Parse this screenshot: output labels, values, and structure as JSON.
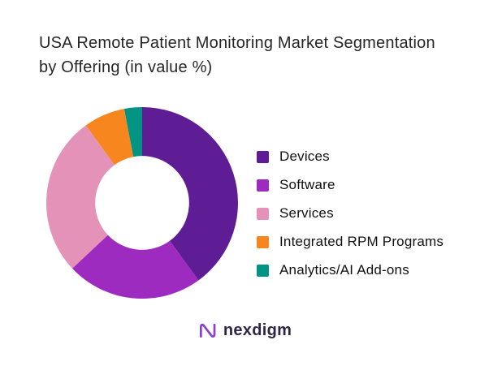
{
  "header": {
    "title_line1": "USA Remote Patient Monitoring Market Segmentation",
    "title_line2": "by Offering (in value %)"
  },
  "chart_data": {
    "type": "pie",
    "subtype": "donut",
    "title": "USA Remote Patient Monitoring Market Segmentation by Offering (in value %)",
    "labels": [
      "Devices",
      "Software",
      "Services",
      "Integrated RPM Programs",
      "Analytics/AI Add-ons"
    ],
    "values": [
      40,
      23,
      27,
      7,
      3
    ],
    "unit": "value %",
    "colors": [
      "#5e1c95",
      "#9d2bbf",
      "#e492b8",
      "#f6861d",
      "#029483"
    ],
    "legend_position": "right",
    "start_angle_deg": -90,
    "direction": "clockwise",
    "inner_radius_ratio": 0.49,
    "grid": false,
    "data_labels": false
  },
  "footer": {
    "brand": "nexdigm",
    "brand_icon": "nexdigm-wave-icon",
    "brand_icon_color": "#8a3fd1",
    "brand_text_color": "#2f2545"
  }
}
